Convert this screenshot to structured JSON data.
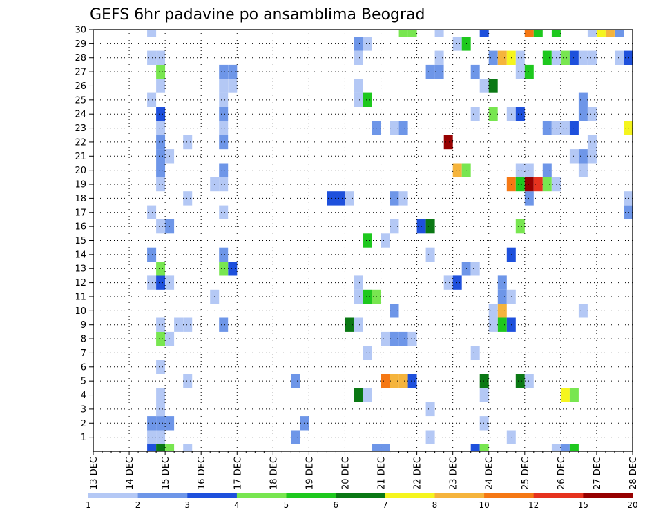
{
  "chart_data": {
    "type": "heatmap",
    "title": "GEFS 6hr padavine po ansamblima Beograd",
    "x_categories": [
      "13 DEC",
      "14 DEC",
      "15 DEC",
      "16 DEC",
      "17 DEC",
      "18 DEC",
      "19 DEC",
      "20 DEC",
      "21 DEC",
      "22 DEC",
      "23 DEC",
      "24 DEC",
      "25 DEC",
      "26 DEC",
      "27 DEC",
      "28 DEC"
    ],
    "x_range": [
      0,
      15
    ],
    "x_step_hours": 6,
    "y_labels": [
      "1",
      "2",
      "3",
      "4",
      "5",
      "6",
      "7",
      "8",
      "9",
      "10",
      "11",
      "12",
      "13",
      "14",
      "15",
      "16",
      "17",
      "18",
      "19",
      "20",
      "21",
      "22",
      "23",
      "24",
      "25",
      "26",
      "27",
      "28",
      "29",
      "30"
    ],
    "y_range": [
      0,
      30
    ],
    "grid": true,
    "legend": {
      "position": "bottom",
      "thresholds": [
        "1",
        "2",
        "3",
        "4",
        "5",
        "6",
        "7",
        "8",
        "10",
        "12",
        "15",
        "20"
      ],
      "colors": [
        "#b4c8f5",
        "#6e96e8",
        "#1e50dc",
        "#78e650",
        "#1ec81e",
        "#0a7814",
        "#f5f51e",
        "#f5b43c",
        "#f57814",
        "#e6321e",
        "#960000"
      ]
    },
    "class_colors": {
      "1": "#b4c8f5",
      "2": "#6e96e8",
      "3": "#1e50dc",
      "4": "#78e650",
      "5": "#1ec81e",
      "6": "#0a7814",
      "7": "#f5f51e",
      "8": "#f5b43c",
      "10": "#f57814",
      "12": "#e6321e",
      "15": "#960000"
    },
    "values_legend": "each cell: [x in days after 13 DEC, member, class lower bound in mm]",
    "cells": [
      [
        1.5,
        0,
        3
      ],
      [
        1.75,
        0,
        6
      ],
      [
        2.0,
        0,
        4
      ],
      [
        2.5,
        0,
        1
      ],
      [
        7.75,
        0,
        2
      ],
      [
        8.0,
        0,
        2
      ],
      [
        10.5,
        0,
        3
      ],
      [
        10.75,
        0,
        4
      ],
      [
        12.75,
        0,
        1
      ],
      [
        13.0,
        0,
        2
      ],
      [
        13.25,
        0,
        5
      ],
      [
        1.5,
        1,
        1
      ],
      [
        1.75,
        1,
        1
      ],
      [
        5.5,
        1,
        2
      ],
      [
        9.25,
        1,
        1
      ],
      [
        11.5,
        1,
        1
      ],
      [
        1.5,
        2,
        2
      ],
      [
        1.75,
        2,
        2
      ],
      [
        2.0,
        2,
        2
      ],
      [
        5.75,
        2,
        2
      ],
      [
        10.75,
        2,
        1
      ],
      [
        1.75,
        3,
        1
      ],
      [
        9.25,
        3,
        1
      ],
      [
        1.75,
        4,
        1
      ],
      [
        7.25,
        4,
        6
      ],
      [
        7.5,
        4,
        1
      ],
      [
        10.75,
        4,
        1
      ],
      [
        13.0,
        4,
        7
      ],
      [
        13.25,
        4,
        4
      ],
      [
        2.5,
        5,
        1
      ],
      [
        5.5,
        5,
        2
      ],
      [
        8.0,
        5,
        10
      ],
      [
        8.25,
        5,
        8
      ],
      [
        8.5,
        5,
        8
      ],
      [
        8.75,
        5,
        3
      ],
      [
        10.75,
        5,
        6
      ],
      [
        11.75,
        5,
        6
      ],
      [
        12.0,
        5,
        1
      ],
      [
        1.75,
        6,
        1
      ],
      [
        7.5,
        7,
        1
      ],
      [
        10.5,
        7,
        1
      ],
      [
        1.75,
        8,
        4
      ],
      [
        2.0,
        8,
        1
      ],
      [
        8.0,
        8,
        1
      ],
      [
        8.25,
        8,
        2
      ],
      [
        8.5,
        8,
        2
      ],
      [
        8.75,
        8,
        1
      ],
      [
        1.75,
        9,
        1
      ],
      [
        2.25,
        9,
        1
      ],
      [
        2.5,
        9,
        1
      ],
      [
        3.5,
        9,
        2
      ],
      [
        7.0,
        9,
        6
      ],
      [
        7.25,
        9,
        1
      ],
      [
        11.0,
        9,
        1
      ],
      [
        11.25,
        9,
        5
      ],
      [
        11.5,
        9,
        3
      ],
      [
        8.25,
        10,
        2
      ],
      [
        11.0,
        10,
        1
      ],
      [
        11.25,
        10,
        8
      ],
      [
        13.5,
        10,
        1
      ],
      [
        3.25,
        11,
        1
      ],
      [
        7.25,
        11,
        1
      ],
      [
        7.5,
        11,
        5
      ],
      [
        7.75,
        11,
        4
      ],
      [
        11.25,
        11,
        2
      ],
      [
        11.5,
        11,
        1
      ],
      [
        1.5,
        12,
        1
      ],
      [
        1.75,
        12,
        3
      ],
      [
        2.0,
        12,
        1
      ],
      [
        7.25,
        12,
        1
      ],
      [
        9.75,
        12,
        1
      ],
      [
        10.0,
        12,
        3
      ],
      [
        11.25,
        12,
        2
      ],
      [
        1.75,
        13,
        4
      ],
      [
        3.5,
        13,
        4
      ],
      [
        3.75,
        13,
        3
      ],
      [
        10.25,
        13,
        2
      ],
      [
        10.5,
        13,
        1
      ],
      [
        1.5,
        14,
        2
      ],
      [
        3.5,
        14,
        2
      ],
      [
        9.25,
        14,
        1
      ],
      [
        11.5,
        14,
        3
      ],
      [
        7.5,
        15,
        5
      ],
      [
        8.0,
        15,
        1
      ],
      [
        1.75,
        16,
        1
      ],
      [
        2.0,
        16,
        2
      ],
      [
        8.25,
        16,
        1
      ],
      [
        9.0,
        16,
        3
      ],
      [
        9.25,
        16,
        6
      ],
      [
        11.75,
        16,
        4
      ],
      [
        1.5,
        17,
        1
      ],
      [
        3.5,
        17,
        1
      ],
      [
        14.75,
        17,
        2
      ],
      [
        2.5,
        18,
        1
      ],
      [
        6.5,
        18,
        3
      ],
      [
        6.75,
        18,
        3
      ],
      [
        7.0,
        18,
        1
      ],
      [
        8.25,
        18,
        2
      ],
      [
        8.5,
        18,
        1
      ],
      [
        12.0,
        18,
        2
      ],
      [
        14.75,
        18,
        1
      ],
      [
        1.75,
        19,
        1
      ],
      [
        3.25,
        19,
        1
      ],
      [
        3.5,
        19,
        1
      ],
      [
        11.5,
        19,
        10
      ],
      [
        11.75,
        19,
        5
      ],
      [
        12.0,
        19,
        15
      ],
      [
        12.25,
        19,
        12
      ],
      [
        12.5,
        19,
        4
      ],
      [
        12.75,
        19,
        1
      ],
      [
        1.75,
        20,
        2
      ],
      [
        3.5,
        20,
        2
      ],
      [
        10.0,
        20,
        8
      ],
      [
        10.25,
        20,
        4
      ],
      [
        11.75,
        20,
        1
      ],
      [
        12.0,
        20,
        1
      ],
      [
        12.5,
        20,
        2
      ],
      [
        13.5,
        20,
        1
      ],
      [
        1.75,
        21,
        2
      ],
      [
        2.0,
        21,
        1
      ],
      [
        13.25,
        21,
        1
      ],
      [
        13.5,
        21,
        2
      ],
      [
        13.75,
        21,
        1
      ],
      [
        1.75,
        22,
        2
      ],
      [
        2.5,
        22,
        1
      ],
      [
        3.5,
        22,
        2
      ],
      [
        9.75,
        22,
        15
      ],
      [
        13.75,
        22,
        1
      ],
      [
        1.75,
        23,
        1
      ],
      [
        3.5,
        23,
        1
      ],
      [
        7.75,
        23,
        2
      ],
      [
        8.25,
        23,
        1
      ],
      [
        8.5,
        23,
        2
      ],
      [
        12.5,
        23,
        2
      ],
      [
        12.75,
        23,
        1
      ],
      [
        13.0,
        23,
        1
      ],
      [
        13.25,
        23,
        3
      ],
      [
        14.75,
        23,
        7
      ],
      [
        1.75,
        24,
        3
      ],
      [
        3.5,
        24,
        2
      ],
      [
        10.5,
        24,
        1
      ],
      [
        11.0,
        24,
        4
      ],
      [
        11.5,
        24,
        1
      ],
      [
        11.75,
        24,
        3
      ],
      [
        13.5,
        24,
        2
      ],
      [
        13.75,
        24,
        1
      ],
      [
        1.5,
        25,
        1
      ],
      [
        3.5,
        25,
        1
      ],
      [
        7.25,
        25,
        1
      ],
      [
        7.5,
        25,
        5
      ],
      [
        13.5,
        25,
        2
      ],
      [
        1.75,
        26,
        1
      ],
      [
        3.5,
        26,
        1
      ],
      [
        3.75,
        26,
        1
      ],
      [
        7.25,
        26,
        1
      ],
      [
        10.75,
        26,
        1
      ],
      [
        11.0,
        26,
        6
      ],
      [
        1.75,
        27,
        4
      ],
      [
        3.5,
        27,
        2
      ],
      [
        3.75,
        27,
        2
      ],
      [
        9.25,
        27,
        2
      ],
      [
        9.5,
        27,
        2
      ],
      [
        10.5,
        27,
        2
      ],
      [
        11.75,
        27,
        1
      ],
      [
        12.0,
        27,
        5
      ],
      [
        1.5,
        28,
        1
      ],
      [
        1.75,
        28,
        1
      ],
      [
        7.25,
        28,
        1
      ],
      [
        9.5,
        28,
        1
      ],
      [
        11.0,
        28,
        2
      ],
      [
        11.25,
        28,
        8
      ],
      [
        11.5,
        28,
        7
      ],
      [
        11.75,
        28,
        1
      ],
      [
        12.5,
        28,
        5
      ],
      [
        12.75,
        28,
        1
      ],
      [
        13.0,
        28,
        4
      ],
      [
        13.25,
        28,
        3
      ],
      [
        13.5,
        28,
        1
      ],
      [
        13.75,
        28,
        1
      ],
      [
        14.5,
        28,
        1
      ],
      [
        14.75,
        28,
        3
      ],
      [
        7.25,
        29,
        2
      ],
      [
        7.5,
        29,
        1
      ],
      [
        10.0,
        29,
        1
      ],
      [
        10.25,
        29,
        5
      ],
      [
        1.5,
        30,
        1
      ],
      [
        8.5,
        30,
        4
      ],
      [
        8.75,
        30,
        4
      ],
      [
        9.5,
        30,
        1
      ],
      [
        10.75,
        30,
        3
      ],
      [
        12.0,
        30,
        10
      ],
      [
        12.25,
        30,
        5
      ],
      [
        12.75,
        30,
        5
      ],
      [
        13.75,
        30,
        1
      ],
      [
        14.0,
        30,
        7
      ],
      [
        14.25,
        30,
        8
      ],
      [
        14.5,
        30,
        2
      ]
    ]
  }
}
